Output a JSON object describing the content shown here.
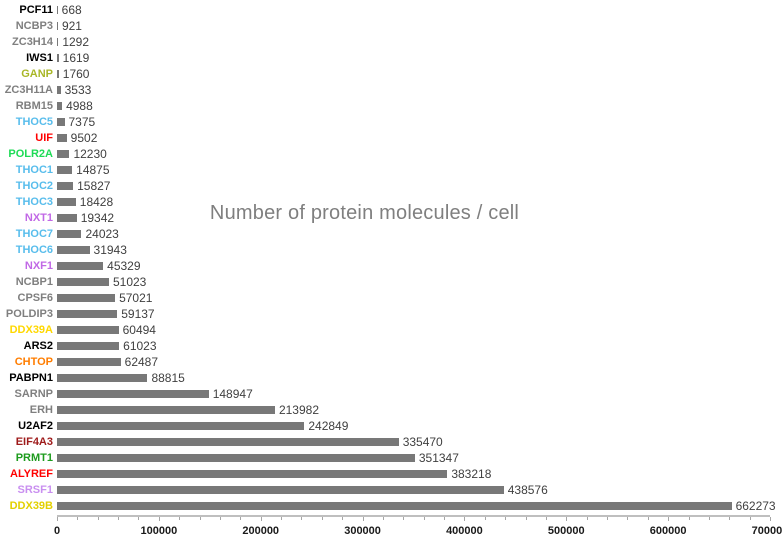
{
  "chart_data": {
    "type": "bar",
    "orientation": "horizontal",
    "title": "Number of protein molecules / cell",
    "xlabel": "",
    "ylabel": "",
    "xlim": [
      0,
      700000
    ],
    "grid": false,
    "legend": "none",
    "bar_color": "#787878",
    "value_labels_shown": true,
    "x_major_ticks": [
      {
        "value": 0,
        "label": "0"
      },
      {
        "value": 100000,
        "label": "100000"
      },
      {
        "value": 200000,
        "label": "200000"
      },
      {
        "value": 300000,
        "label": "300000"
      },
      {
        "value": 400000,
        "label": "400000"
      },
      {
        "value": 500000,
        "label": "500000"
      },
      {
        "value": 600000,
        "label": "600000"
      },
      {
        "value": 700000,
        "label": "700000"
      }
    ],
    "x_minor_tick_step": 20000,
    "rows": [
      {
        "category": "PCF11",
        "value": 668,
        "value_label": "668",
        "label_color": "#000000"
      },
      {
        "category": "NCBP3",
        "value": 921,
        "value_label": "921",
        "label_color": "#7f7f7f"
      },
      {
        "category": "ZC3H14",
        "value": 1292,
        "value_label": "1292",
        "label_color": "#7f7f7f"
      },
      {
        "category": "IWS1",
        "value": 1619,
        "value_label": "1619",
        "label_color": "#000000"
      },
      {
        "category": "GANP",
        "value": 1760,
        "value_label": "1760",
        "label_color": "#a9b728"
      },
      {
        "category": "ZC3H11A",
        "value": 3533,
        "value_label": "3533",
        "label_color": "#7f7f7f"
      },
      {
        "category": "RBM15",
        "value": 4988,
        "value_label": "4988",
        "label_color": "#7f7f7f"
      },
      {
        "category": "THOC5",
        "value": 7375,
        "value_label": "7375",
        "label_color": "#58bdec"
      },
      {
        "category": "UIF",
        "value": 9502,
        "value_label": "9502",
        "label_color": "#ff0000"
      },
      {
        "category": "POLR2A",
        "value": 12230,
        "value_label": "12230",
        "label_color": "#1edb56"
      },
      {
        "category": "THOC1",
        "value": 14875,
        "value_label": "14875",
        "label_color": "#58bdec"
      },
      {
        "category": "THOC2",
        "value": 15827,
        "value_label": "15827",
        "label_color": "#58bdec"
      },
      {
        "category": "THOC3",
        "value": 18428,
        "value_label": "18428",
        "label_color": "#58bdec"
      },
      {
        "category": "NXT1",
        "value": 19342,
        "value_label": "19342",
        "label_color": "#c168e6"
      },
      {
        "category": "THOC7",
        "value": 24023,
        "value_label": "24023",
        "label_color": "#58bdec"
      },
      {
        "category": "THOC6",
        "value": 31943,
        "value_label": "31943",
        "label_color": "#58bdec"
      },
      {
        "category": "NXF1",
        "value": 45329,
        "value_label": "45329",
        "label_color": "#c168e6"
      },
      {
        "category": "NCBP1",
        "value": 51023,
        "value_label": "51023",
        "label_color": "#7f7f7f"
      },
      {
        "category": "CPSF6",
        "value": 57021,
        "value_label": "57021",
        "label_color": "#7f7f7f"
      },
      {
        "category": "POLDIP3",
        "value": 59137,
        "value_label": "59137",
        "label_color": "#7f7f7f"
      },
      {
        "category": "DDX39A",
        "value": 60494,
        "value_label": "60494",
        "label_color": "#ffd800"
      },
      {
        "category": "ARS2",
        "value": 61023,
        "value_label": "61023",
        "label_color": "#000000"
      },
      {
        "category": "CHTOP",
        "value": 62487,
        "value_label": "62487",
        "label_color": "#ff7d00"
      },
      {
        "category": "PABPN1",
        "value": 88815,
        "value_label": "88815",
        "label_color": "#000000"
      },
      {
        "category": "SARNP",
        "value": 148947,
        "value_label": "148947",
        "label_color": "#7f7f7f"
      },
      {
        "category": "ERH",
        "value": 213982,
        "value_label": "213982",
        "label_color": "#7f7f7f"
      },
      {
        "category": "U2AF2",
        "value": 242849,
        "value_label": "242849",
        "label_color": "#000000"
      },
      {
        "category": "EIF4A3",
        "value": 335470,
        "value_label": "335470",
        "label_color": "#9e1a1a"
      },
      {
        "category": "PRMT1",
        "value": 351347,
        "value_label": "351347",
        "label_color": "#1d9b1d"
      },
      {
        "category": "ALYREF",
        "value": 383218,
        "value_label": "383218",
        "label_color": "#ff0000"
      },
      {
        "category": "SRSF1",
        "value": 438576,
        "value_label": "438576",
        "label_color": "#c98ff0"
      },
      {
        "category": "DDX39B",
        "value": 662273,
        "value_label": "662273",
        "label_color": "#e3d000"
      }
    ]
  }
}
